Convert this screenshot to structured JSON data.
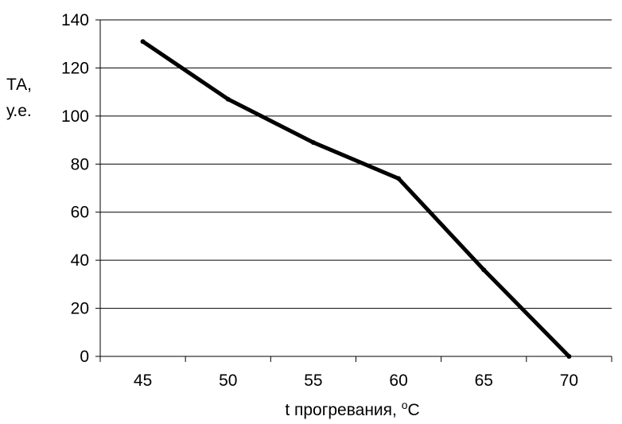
{
  "chart_data": {
    "type": "line",
    "x": [
      "45",
      "50",
      "55",
      "60",
      "65",
      "70"
    ],
    "series": [
      {
        "values": [
          131,
          107,
          89,
          74,
          36,
          0
        ]
      }
    ],
    "xlabel": {
      "prefix": "t прогревания,  ",
      "sup": "o",
      "unit": "C"
    },
    "ylabel": {
      "line1": "ТА,",
      "line2": "у.е."
    },
    "ylim": [
      0,
      140
    ],
    "yticks": [
      "0",
      "20",
      "40",
      "60",
      "80",
      "100",
      "120",
      "140"
    ],
    "grid": "horizontal",
    "colors": {
      "line": "#000000",
      "grid": "#000000",
      "axis": "#000000"
    }
  }
}
